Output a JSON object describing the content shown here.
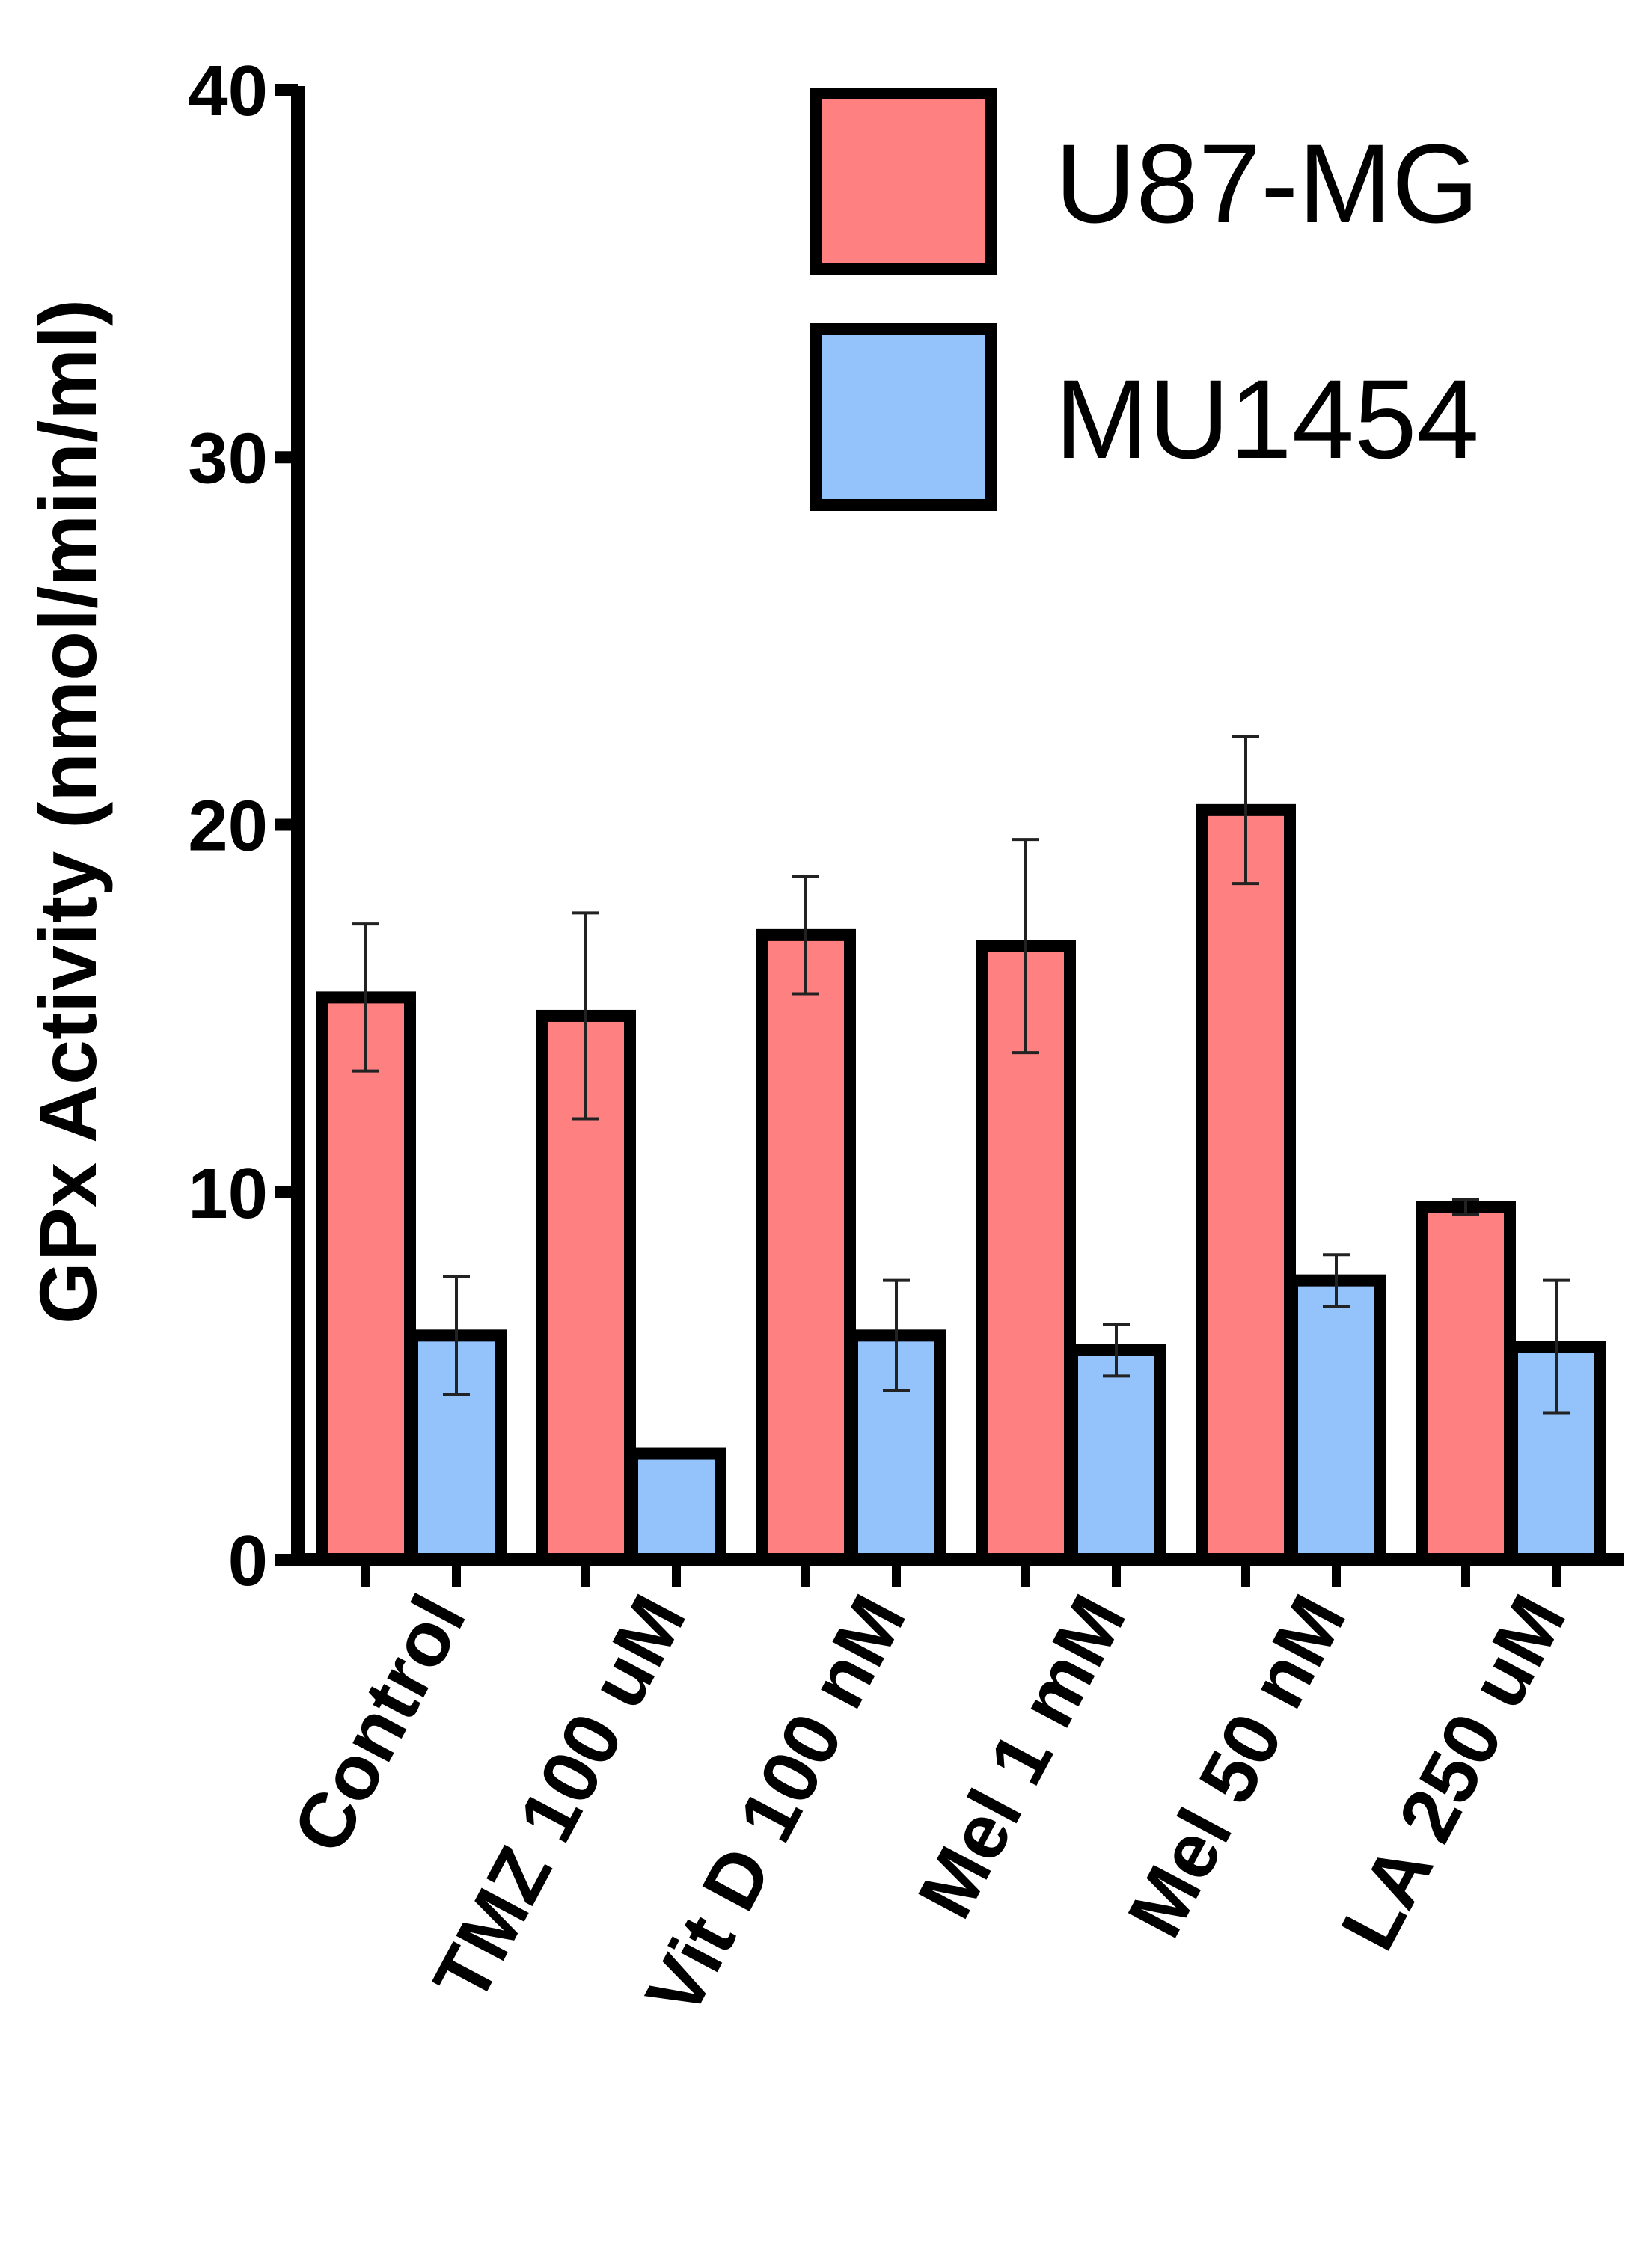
{
  "chart_data": {
    "type": "bar",
    "title": "",
    "xlabel": "",
    "ylabel": "GPx Activity (nmol/min/ml)",
    "ylim": [
      0,
      40
    ],
    "yticks": [
      "0",
      "10",
      "20",
      "30",
      "40"
    ],
    "categories": [
      "Control",
      "TMZ 100 uM",
      "Vit D 100 nM",
      "Mel 1 mM",
      "Mel 50 nM",
      "LA 250 uM"
    ],
    "series": [
      {
        "name": "U87-MG",
        "color": "#ff8080",
        "values": [
          15.3,
          14.8,
          17.0,
          16.7,
          20.4,
          9.6
        ],
        "errors": [
          2.0,
          2.8,
          1.6,
          2.9,
          2.0,
          0.2
        ]
      },
      {
        "name": "MU1454",
        "color": "#94c2fb",
        "values": [
          6.1,
          2.9,
          6.1,
          5.7,
          7.6,
          5.8
        ],
        "errors": [
          1.6,
          0.0,
          1.5,
          0.7,
          0.7,
          1.8
        ]
      }
    ],
    "legend_position": "top-right",
    "grid": false
  }
}
